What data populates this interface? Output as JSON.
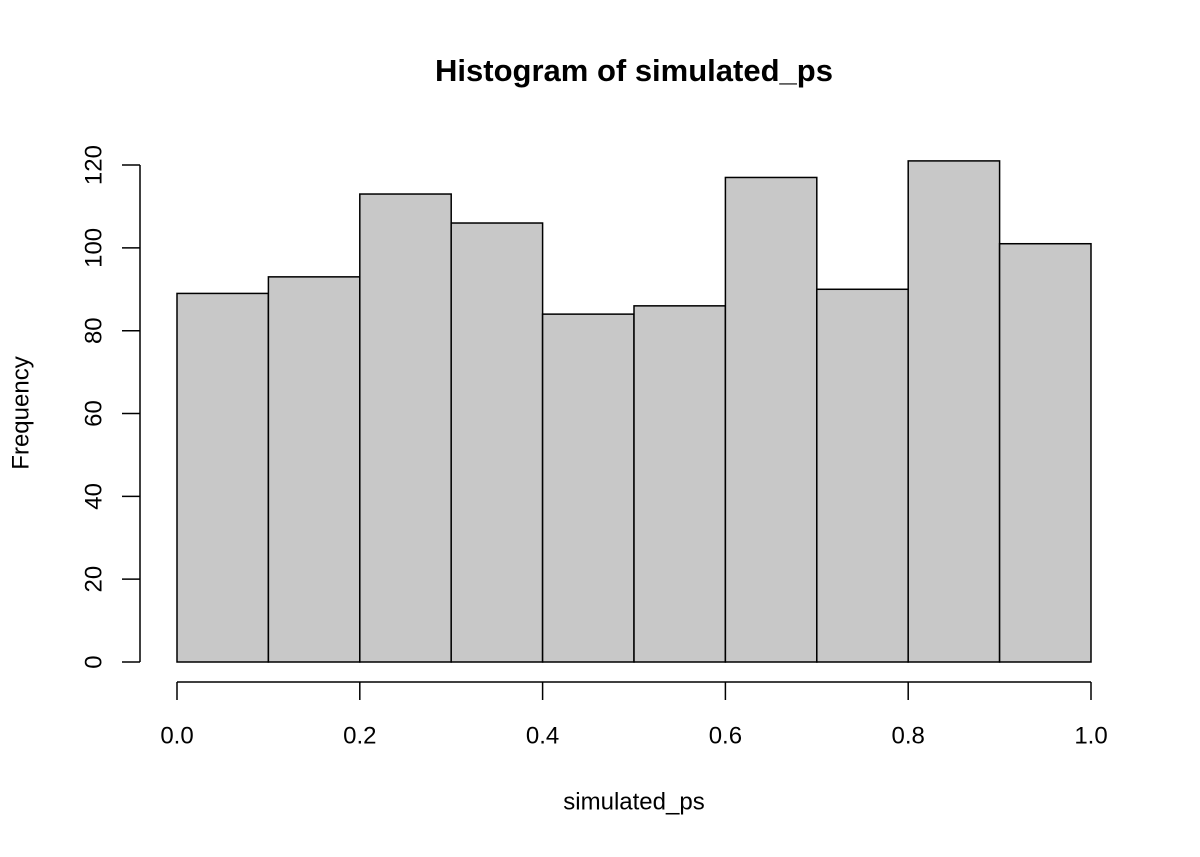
{
  "chart_data": {
    "type": "histogram",
    "title": "Histogram of simulated_ps",
    "x_label": "simulated_ps",
    "y_label": "Frequency",
    "bins": [
      0,
      0.1,
      0.2,
      0.3,
      0.4,
      0.5,
      0.6,
      0.7,
      0.8,
      0.9,
      1.0
    ],
    "values": [
      89,
      93,
      113,
      106,
      84,
      86,
      117,
      90,
      121,
      101
    ],
    "color": "#c8c8c8",
    "xlim": [
      0,
      1
    ],
    "xticks": [
      {
        "value": 0,
        "label": "0.0"
      },
      0.2,
      0.4,
      0.6,
      0.8,
      {
        "value": 1,
        "label": "1.0"
      }
    ],
    "ylim": [
      0,
      121
    ],
    "yticks": [
      0,
      20,
      40,
      60,
      80,
      100,
      120
    ]
  }
}
